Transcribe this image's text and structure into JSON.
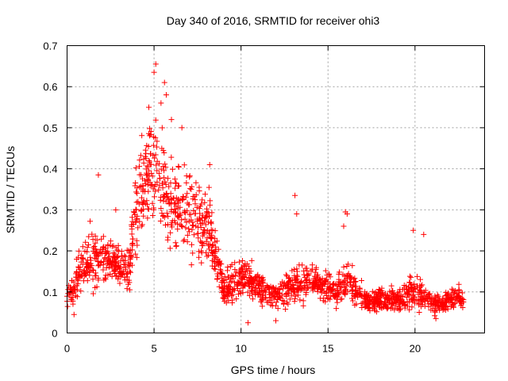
{
  "chart_data": {
    "type": "scatter",
    "title": "Day 340 of 2016, SRMTID for receiver ohi3",
    "xlabel": "GPS time / hours",
    "ylabel": "SRMTID / TECUs",
    "xlim": [
      0,
      24
    ],
    "ylim": [
      0,
      0.7
    ],
    "grid": true,
    "marker": "plus",
    "color": "#ff0000",
    "xticks": [
      0,
      5,
      10,
      15,
      20
    ],
    "xtick_labels": [
      "0",
      "5",
      "10",
      "15",
      "20"
    ],
    "yticks": [
      0,
      0.1,
      0.2,
      0.3,
      0.4,
      0.5,
      0.6,
      0.7
    ],
    "ytick_labels": [
      "0",
      "0.1",
      "0.2",
      "0.3",
      "0.4",
      "0.5",
      "0.6",
      "0.7"
    ],
    "series": [
      {
        "name": "SRMTID",
        "envelope_note": "estimated trend of the dense point cloud (hour, typical value, spread)",
        "trend": [
          [
            0.0,
            0.09,
            0.03
          ],
          [
            0.5,
            0.12,
            0.05
          ],
          [
            1.0,
            0.17,
            0.07
          ],
          [
            1.5,
            0.18,
            0.08
          ],
          [
            2.0,
            0.19,
            0.06
          ],
          [
            2.5,
            0.17,
            0.05
          ],
          [
            3.0,
            0.16,
            0.06
          ],
          [
            3.5,
            0.15,
            0.05
          ],
          [
            4.0,
            0.3,
            0.12
          ],
          [
            4.5,
            0.38,
            0.13
          ],
          [
            5.0,
            0.42,
            0.14
          ],
          [
            5.5,
            0.36,
            0.13
          ],
          [
            6.0,
            0.3,
            0.12
          ],
          [
            6.5,
            0.32,
            0.12
          ],
          [
            7.0,
            0.28,
            0.12
          ],
          [
            7.5,
            0.26,
            0.1
          ],
          [
            8.0,
            0.27,
            0.09
          ],
          [
            8.5,
            0.2,
            0.07
          ],
          [
            9.0,
            0.11,
            0.04
          ],
          [
            9.5,
            0.12,
            0.05
          ],
          [
            10.0,
            0.14,
            0.06
          ],
          [
            10.5,
            0.13,
            0.05
          ],
          [
            11.0,
            0.11,
            0.04
          ],
          [
            11.5,
            0.1,
            0.04
          ],
          [
            12.0,
            0.09,
            0.03
          ],
          [
            12.5,
            0.1,
            0.04
          ],
          [
            13.0,
            0.12,
            0.05
          ],
          [
            13.5,
            0.12,
            0.05
          ],
          [
            14.0,
            0.13,
            0.04
          ],
          [
            14.5,
            0.12,
            0.04
          ],
          [
            15.0,
            0.11,
            0.04
          ],
          [
            15.5,
            0.1,
            0.04
          ],
          [
            16.0,
            0.13,
            0.06
          ],
          [
            16.5,
            0.11,
            0.05
          ],
          [
            17.0,
            0.08,
            0.03
          ],
          [
            17.5,
            0.08,
            0.03
          ],
          [
            18.0,
            0.08,
            0.03
          ],
          [
            18.5,
            0.08,
            0.03
          ],
          [
            19.0,
            0.08,
            0.03
          ],
          [
            19.5,
            0.09,
            0.04
          ],
          [
            20.0,
            0.1,
            0.05
          ],
          [
            20.5,
            0.09,
            0.04
          ],
          [
            21.0,
            0.07,
            0.03
          ],
          [
            21.5,
            0.07,
            0.03
          ],
          [
            22.0,
            0.08,
            0.03
          ],
          [
            22.5,
            0.09,
            0.03
          ],
          [
            22.8,
            0.08,
            0.03
          ]
        ],
        "notable_points": [
          [
            5.1,
            0.655
          ],
          [
            5.0,
            0.635
          ],
          [
            5.6,
            0.61
          ],
          [
            5.7,
            0.58
          ],
          [
            4.7,
            0.55
          ],
          [
            5.4,
            0.56
          ],
          [
            6.0,
            0.52
          ],
          [
            6.6,
            0.5
          ],
          [
            1.8,
            0.385
          ],
          [
            2.8,
            0.3
          ],
          [
            8.2,
            0.41
          ],
          [
            13.1,
            0.335
          ],
          [
            13.2,
            0.29
          ],
          [
            16.0,
            0.295
          ],
          [
            16.1,
            0.29
          ],
          [
            19.9,
            0.25
          ],
          [
            15.9,
            0.26
          ],
          [
            12.0,
            0.03
          ],
          [
            10.4,
            0.025
          ],
          [
            9.5,
            0.08
          ],
          [
            0.4,
            0.045
          ],
          [
            20.5,
            0.24
          ],
          [
            21.2,
            0.035
          ]
        ]
      }
    ]
  }
}
